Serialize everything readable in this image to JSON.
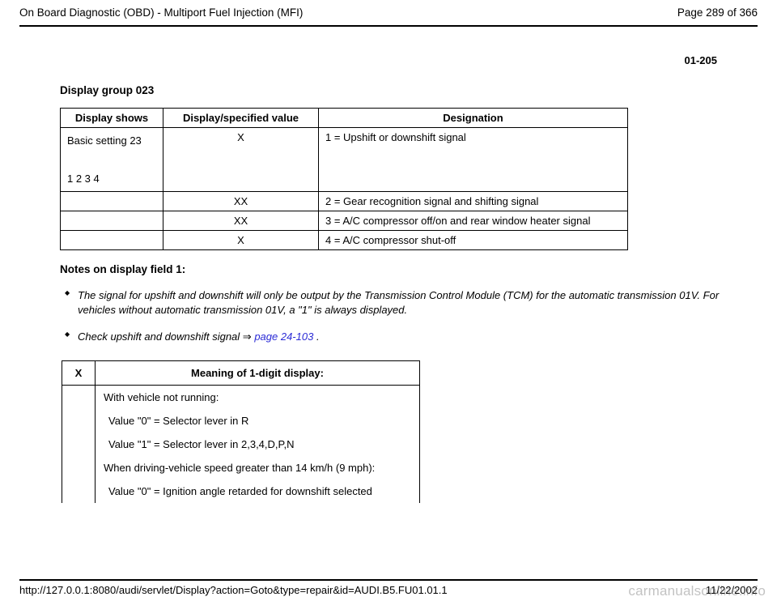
{
  "header": {
    "title": "On Board Diagnostic (OBD) - Multiport Fuel Injection (MFI)",
    "page_of": "Page 289 of 366"
  },
  "page_number_secondary": "01-205",
  "section_title": "Display group 023",
  "group_table": {
    "headers": [
      "Display shows",
      "Display/specified value",
      "Designation"
    ],
    "rows": [
      {
        "shows_line1": "Basic setting 23",
        "shows_line2": "1 2 3 4",
        "value": "X",
        "designation": "1 = Upshift or downshift signal"
      },
      {
        "shows_line1": "",
        "shows_line2": "",
        "value": "XX",
        "designation": "2 = Gear recognition signal and shifting signal"
      },
      {
        "shows_line1": "",
        "shows_line2": "",
        "value": "XX",
        "designation": "3 = A/C compressor off/on and rear window heater signal"
      },
      {
        "shows_line1": "",
        "shows_line2": "",
        "value": "X",
        "designation": "4 = A/C compressor shut-off"
      }
    ]
  },
  "notes_title": "Notes on display field 1:",
  "notes": {
    "item1": "The signal for upshift and downshift will only be output by the Transmission Control Module (TCM) for the automatic transmission 01V. For vehicles without automatic transmission 01V, a \"1\" is always displayed.",
    "item2_prefix": "Check upshift and downshift signal ",
    "item2_arrow": "⇒",
    "item2_link": " page 24-103",
    "item2_suffix": " ."
  },
  "meaning_table": {
    "head_x": "X",
    "head_m": "Meaning of 1-digit display:",
    "rows": [
      "With vehicle not running:",
      "Value \"0\" = Selector lever in R",
      "Value \"1\" = Selector lever in 2,3,4,D,P,N",
      "When driving-vehicle speed greater than 14 km/h (9 mph):",
      "Value \"0\" = Ignition angle retarded for downshift selected"
    ]
  },
  "footer": {
    "url": "http://127.0.0.1:8080/audi/servlet/Display?action=Goto&type=repair&id=AUDI.B5.FU01.01.1",
    "date": "11/22/2002"
  },
  "watermark": "carmanualsonline.info"
}
